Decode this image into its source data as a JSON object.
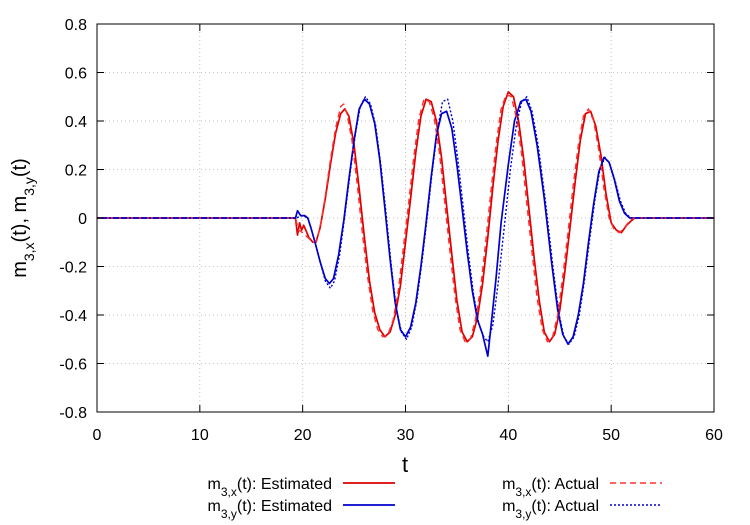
{
  "chart_data": {
    "type": "line",
    "xlabel": "t",
    "ylabel_parts": [
      {
        "text": "m",
        "sub": false
      },
      {
        "text": "3,x",
        "sub": true
      },
      {
        "text": "(t), m",
        "sub": false
      },
      {
        "text": "3,y",
        "sub": true
      },
      {
        "text": "(t)",
        "sub": false
      }
    ],
    "xlim": [
      0,
      60
    ],
    "ylim": [
      -0.8,
      0.8
    ],
    "xticks": [
      0,
      10,
      20,
      30,
      40,
      50,
      60
    ],
    "yticks": [
      -0.8,
      -0.6,
      -0.4,
      -0.2,
      0,
      0.2,
      0.4,
      0.6,
      0.8
    ],
    "xtick_labels": [
      "0",
      "10",
      "20",
      "30",
      "40",
      "50",
      "60"
    ],
    "ytick_labels": [
      "-0.8",
      "-0.6",
      "-0.4",
      "-0.2",
      "0",
      "0.2",
      "0.4",
      "0.6",
      "0.8"
    ],
    "grid": true,
    "legend_position": "bottom",
    "series": [
      {
        "legend_prefix": "m",
        "legend_sub": "3,x",
        "legend_suffix": "(t): Estimated",
        "color": "#dd0000",
        "dash": "solid",
        "points": [
          [
            0,
            0
          ],
          [
            19.3,
            0
          ],
          [
            19.5,
            -0.07
          ],
          [
            19.7,
            -0.02
          ],
          [
            19.9,
            -0.05
          ],
          [
            20.1,
            -0.03
          ],
          [
            20.3,
            -0.05
          ],
          [
            20.6,
            -0.08
          ],
          [
            21,
            -0.1
          ],
          [
            21.3,
            -0.1
          ],
          [
            21.7,
            -0.04
          ],
          [
            22.2,
            0.08
          ],
          [
            22.7,
            0.22
          ],
          [
            23.2,
            0.35
          ],
          [
            23.7,
            0.43
          ],
          [
            24.1,
            0.45
          ],
          [
            24.5,
            0.42
          ],
          [
            25,
            0.3
          ],
          [
            25.5,
            0.12
          ],
          [
            26,
            -0.08
          ],
          [
            26.5,
            -0.26
          ],
          [
            27,
            -0.39
          ],
          [
            27.5,
            -0.46
          ],
          [
            28,
            -0.49
          ],
          [
            28.5,
            -0.47
          ],
          [
            29,
            -0.4
          ],
          [
            29.5,
            -0.28
          ],
          [
            30,
            -0.1
          ],
          [
            30.5,
            0.08
          ],
          [
            31,
            0.27
          ],
          [
            31.5,
            0.42
          ],
          [
            32,
            0.49
          ],
          [
            32.5,
            0.48
          ],
          [
            33,
            0.4
          ],
          [
            33.5,
            0.25
          ],
          [
            34,
            0.05
          ],
          [
            34.5,
            -0.15
          ],
          [
            35,
            -0.34
          ],
          [
            35.5,
            -0.47
          ],
          [
            36,
            -0.51
          ],
          [
            36.5,
            -0.49
          ],
          [
            37,
            -0.41
          ],
          [
            37.5,
            -0.27
          ],
          [
            38,
            -0.08
          ],
          [
            38.5,
            0.13
          ],
          [
            39,
            0.32
          ],
          [
            39.5,
            0.46
          ],
          [
            40,
            0.52
          ],
          [
            40.5,
            0.5
          ],
          [
            41,
            0.4
          ],
          [
            41.5,
            0.24
          ],
          [
            42,
            0.04
          ],
          [
            42.5,
            -0.16
          ],
          [
            43,
            -0.34
          ],
          [
            43.5,
            -0.47
          ],
          [
            44,
            -0.51
          ],
          [
            44.5,
            -0.48
          ],
          [
            45,
            -0.38
          ],
          [
            45.5,
            -0.22
          ],
          [
            46,
            -0.04
          ],
          [
            46.5,
            0.15
          ],
          [
            47,
            0.32
          ],
          [
            47.5,
            0.43
          ],
          [
            48,
            0.44
          ],
          [
            48.5,
            0.38
          ],
          [
            49,
            0.26
          ],
          [
            49.5,
            0.1
          ],
          [
            50,
            -0.02
          ],
          [
            50.5,
            -0.05
          ],
          [
            51,
            -0.06
          ],
          [
            51.5,
            -0.03
          ],
          [
            52,
            -0.01
          ],
          [
            52.3,
            0
          ],
          [
            60,
            0
          ]
        ]
      },
      {
        "legend_prefix": "m",
        "legend_sub": "3,y",
        "legend_suffix": "(t): Estimated",
        "color": "#0000cc",
        "dash": "solid",
        "points": [
          [
            0,
            0
          ],
          [
            19.3,
            0
          ],
          [
            19.5,
            0.03
          ],
          [
            19.8,
            0.01
          ],
          [
            20.2,
            0.01
          ],
          [
            20.5,
            0
          ],
          [
            20.8,
            -0.04
          ],
          [
            21.2,
            -0.1
          ],
          [
            21.7,
            -0.18
          ],
          [
            22.2,
            -0.25
          ],
          [
            22.6,
            -0.27
          ],
          [
            23,
            -0.25
          ],
          [
            23.5,
            -0.15
          ],
          [
            24,
            -0.01
          ],
          [
            24.5,
            0.16
          ],
          [
            25,
            0.32
          ],
          [
            25.5,
            0.45
          ],
          [
            26,
            0.49
          ],
          [
            26.5,
            0.47
          ],
          [
            27,
            0.39
          ],
          [
            27.5,
            0.24
          ],
          [
            28,
            0.04
          ],
          [
            28.5,
            -0.17
          ],
          [
            29,
            -0.35
          ],
          [
            29.5,
            -0.46
          ],
          [
            30,
            -0.49
          ],
          [
            30.5,
            -0.45
          ],
          [
            31,
            -0.35
          ],
          [
            31.5,
            -0.2
          ],
          [
            32,
            -0.02
          ],
          [
            32.5,
            0.17
          ],
          [
            33,
            0.34
          ],
          [
            33.5,
            0.43
          ],
          [
            34,
            0.44
          ],
          [
            34.5,
            0.37
          ],
          [
            35,
            0.22
          ],
          [
            35.5,
            0.04
          ],
          [
            36,
            -0.14
          ],
          [
            36.5,
            -0.3
          ],
          [
            37,
            -0.42
          ],
          [
            37.5,
            -0.48
          ],
          [
            38,
            -0.57
          ],
          [
            38.3,
            -0.45
          ],
          [
            38.8,
            -0.25
          ],
          [
            39.3,
            -0.02
          ],
          [
            40,
            0.22
          ],
          [
            40.6,
            0.4
          ],
          [
            41.2,
            0.48
          ],
          [
            41.7,
            0.49
          ],
          [
            42.2,
            0.44
          ],
          [
            42.8,
            0.3
          ],
          [
            43.5,
            0.08
          ],
          [
            44.2,
            -0.18
          ],
          [
            44.8,
            -0.38
          ],
          [
            45.3,
            -0.48
          ],
          [
            45.8,
            -0.52
          ],
          [
            46.3,
            -0.49
          ],
          [
            46.8,
            -0.4
          ],
          [
            47.3,
            -0.27
          ],
          [
            47.8,
            -0.1
          ],
          [
            48.3,
            0.06
          ],
          [
            48.8,
            0.19
          ],
          [
            49.3,
            0.25
          ],
          [
            49.8,
            0.23
          ],
          [
            50.3,
            0.16
          ],
          [
            50.8,
            0.07
          ],
          [
            51.3,
            0.02
          ],
          [
            51.8,
            0
          ],
          [
            60,
            0
          ]
        ]
      },
      {
        "legend_prefix": "m",
        "legend_sub": "3,x",
        "legend_suffix": "(t): Actual",
        "color": "#ff3030",
        "dash": "dashed",
        "points": [
          [
            0,
            0
          ],
          [
            19.3,
            0
          ],
          [
            19.6,
            -0.05
          ],
          [
            20,
            -0.06
          ],
          [
            20.5,
            -0.08
          ],
          [
            21,
            -0.1
          ],
          [
            21.3,
            -0.1
          ],
          [
            21.7,
            -0.04
          ],
          [
            22.2,
            0.09
          ],
          [
            22.7,
            0.24
          ],
          [
            23.2,
            0.37
          ],
          [
            23.7,
            0.46
          ],
          [
            24,
            0.47
          ],
          [
            24.3,
            0.43
          ],
          [
            24.8,
            0.32
          ],
          [
            25.3,
            0.14
          ],
          [
            25.8,
            -0.06
          ],
          [
            26.3,
            -0.24
          ],
          [
            26.8,
            -0.38
          ],
          [
            27.3,
            -0.46
          ],
          [
            27.8,
            -0.49
          ],
          [
            28.3,
            -0.48
          ],
          [
            28.8,
            -0.42
          ],
          [
            29.3,
            -0.3
          ],
          [
            29.8,
            -0.12
          ],
          [
            30.3,
            0.06
          ],
          [
            30.8,
            0.25
          ],
          [
            31.3,
            0.41
          ],
          [
            31.8,
            0.49
          ],
          [
            32.3,
            0.48
          ],
          [
            32.8,
            0.41
          ],
          [
            33.3,
            0.27
          ],
          [
            33.8,
            0.07
          ],
          [
            34.3,
            -0.13
          ],
          [
            34.8,
            -0.32
          ],
          [
            35.3,
            -0.46
          ],
          [
            35.8,
            -0.51
          ],
          [
            36.3,
            -0.5
          ],
          [
            36.8,
            -0.42
          ],
          [
            37.3,
            -0.29
          ],
          [
            37.8,
            -0.1
          ],
          [
            38.3,
            0.11
          ],
          [
            38.8,
            0.3
          ],
          [
            39.3,
            0.45
          ],
          [
            39.8,
            0.51
          ],
          [
            40.3,
            0.5
          ],
          [
            40.8,
            0.41
          ],
          [
            41.3,
            0.26
          ],
          [
            41.8,
            0.06
          ],
          [
            42.3,
            -0.14
          ],
          [
            42.8,
            -0.33
          ],
          [
            43.3,
            -0.46
          ],
          [
            43.8,
            -0.51
          ],
          [
            44.3,
            -0.49
          ],
          [
            44.8,
            -0.4
          ],
          [
            45.3,
            -0.24
          ],
          [
            45.8,
            -0.06
          ],
          [
            46.3,
            0.13
          ],
          [
            46.8,
            0.3
          ],
          [
            47.3,
            0.42
          ],
          [
            47.8,
            0.45
          ],
          [
            48.3,
            0.4
          ],
          [
            48.8,
            0.28
          ],
          [
            49.3,
            0.12
          ],
          [
            49.8,
            0
          ],
          [
            50.3,
            -0.05
          ],
          [
            50.8,
            -0.06
          ],
          [
            51.3,
            -0.04
          ],
          [
            51.8,
            -0.01
          ],
          [
            52.2,
            0
          ],
          [
            60,
            0
          ]
        ]
      },
      {
        "legend_prefix": "m",
        "legend_sub": "3,y",
        "legend_suffix": "(t): Actual",
        "color": "#0000cc",
        "dash": "dotted",
        "points": [
          [
            0,
            0
          ],
          [
            19.3,
            0
          ],
          [
            20,
            0.01
          ],
          [
            20.5,
            0
          ],
          [
            20.8,
            -0.04
          ],
          [
            21.2,
            -0.1
          ],
          [
            21.7,
            -0.18
          ],
          [
            22.2,
            -0.26
          ],
          [
            22.7,
            -0.29
          ],
          [
            23.1,
            -0.26
          ],
          [
            23.6,
            -0.15
          ],
          [
            24.1,
            0.01
          ],
          [
            24.6,
            0.18
          ],
          [
            25.1,
            0.34
          ],
          [
            25.6,
            0.46
          ],
          [
            26.1,
            0.5
          ],
          [
            26.6,
            0.47
          ],
          [
            27.1,
            0.38
          ],
          [
            27.6,
            0.22
          ],
          [
            28.1,
            0.02
          ],
          [
            28.6,
            -0.19
          ],
          [
            29.1,
            -0.37
          ],
          [
            29.6,
            -0.47
          ],
          [
            30.1,
            -0.5
          ],
          [
            30.6,
            -0.45
          ],
          [
            31.1,
            -0.34
          ],
          [
            31.6,
            -0.18
          ],
          [
            32.1,
            0
          ],
          [
            32.6,
            0.19
          ],
          [
            33.1,
            0.36
          ],
          [
            33.6,
            0.48
          ],
          [
            34.1,
            0.49
          ],
          [
            34.6,
            0.4
          ],
          [
            35.1,
            0.24
          ],
          [
            35.6,
            0.05
          ],
          [
            36.1,
            -0.14
          ],
          [
            36.6,
            -0.31
          ],
          [
            37.1,
            -0.43
          ],
          [
            37.6,
            -0.49
          ],
          [
            38,
            -0.51
          ],
          [
            38.5,
            -0.44
          ],
          [
            39,
            -0.27
          ],
          [
            39.6,
            -0.04
          ],
          [
            40.2,
            0.2
          ],
          [
            40.8,
            0.39
          ],
          [
            41.3,
            0.48
          ],
          [
            41.8,
            0.5
          ],
          [
            42.3,
            0.44
          ],
          [
            42.9,
            0.3
          ],
          [
            43.6,
            0.07
          ],
          [
            44.3,
            -0.19
          ],
          [
            44.9,
            -0.39
          ],
          [
            45.4,
            -0.49
          ],
          [
            45.9,
            -0.52
          ],
          [
            46.4,
            -0.49
          ],
          [
            46.9,
            -0.4
          ],
          [
            47.4,
            -0.26
          ],
          [
            47.9,
            -0.09
          ],
          [
            48.4,
            0.07
          ],
          [
            48.9,
            0.2
          ],
          [
            49.4,
            0.25
          ],
          [
            49.9,
            0.22
          ],
          [
            50.4,
            0.15
          ],
          [
            50.9,
            0.07
          ],
          [
            51.4,
            0.02
          ],
          [
            51.9,
            0
          ],
          [
            60,
            0
          ]
        ]
      }
    ]
  }
}
